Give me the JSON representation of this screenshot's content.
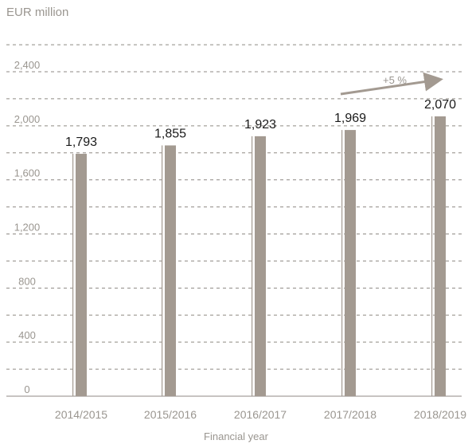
{
  "chart_data": {
    "type": "bar",
    "unit_label": "EUR million",
    "xlabel": "Financial year",
    "ylabel": "",
    "categories": [
      "2014/2015",
      "2015/2016",
      "2016/2017",
      "2017/2018",
      "2018/2019"
    ],
    "values": [
      1793,
      1855,
      1923,
      1969,
      2070
    ],
    "value_labels": [
      "1,793",
      "1,855",
      "1,923",
      "1,969",
      "2,070"
    ],
    "yticks": [
      0,
      400,
      800,
      1200,
      1600,
      2000,
      2400
    ],
    "ytick_labels": [
      "0",
      "400",
      "800",
      "1,200",
      "1,600",
      "2,000",
      "2,400"
    ],
    "ylim": [
      0,
      2400
    ],
    "grid": "dashed horizontal",
    "annotation": {
      "text": "+5 %",
      "from_category": "2017/2018",
      "to_category": "2018/2019"
    },
    "colors": {
      "bar": "#a39a91",
      "grid": "#8f8a84",
      "axis_text": "#9a9690",
      "value_text": "#1a1a1a"
    }
  }
}
